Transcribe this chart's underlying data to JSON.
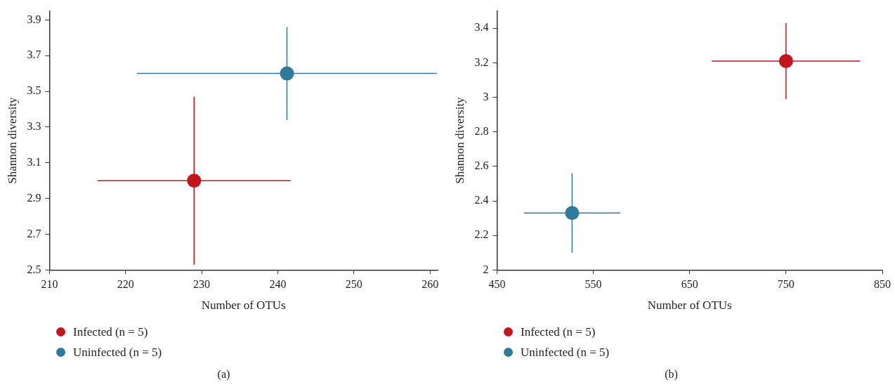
{
  "chart_data": [
    {
      "type": "scatter",
      "xlabel": "Number of OTUs",
      "ylabel": "Shannon diversity",
      "xlim": [
        210,
        261
      ],
      "xticks": [
        210,
        220,
        230,
        240,
        250,
        260
      ],
      "ylim": [
        2.5,
        3.95
      ],
      "yticks": [
        2.5,
        2.7,
        2.9,
        3.1,
        3.3,
        3.5,
        3.7,
        3.9
      ],
      "legend": "bottom left",
      "marker": "circle",
      "annotations": [
        "(a)"
      ],
      "series": [
        {
          "name": "Infected (n = 5)",
          "color": "#c3161c",
          "x": [
            229
          ],
          "values": [
            3.0
          ],
          "xerrors": [
            12.7
          ],
          "errors": [
            0.47
          ]
        },
        {
          "name": "Uninfected (n = 5)",
          "color": "#2e7a9a",
          "x": [
            241.2
          ],
          "values": [
            3.6
          ],
          "xerrors": [
            19.7
          ],
          "errors": [
            0.26
          ]
        }
      ]
    },
    {
      "type": "scatter",
      "xlabel": "Number of OTUs",
      "ylabel": "Shannon diversity",
      "xlim": [
        450,
        850
      ],
      "xticks": [
        450,
        550,
        650,
        750,
        850
      ],
      "ylim": [
        2,
        3.5
      ],
      "yticks": [
        2,
        2.2,
        2.4,
        2.6,
        2.8,
        {
          "value": 3,
          "label": "3"
        },
        3.2,
        3.4
      ],
      "legend": "bottom left",
      "marker": "circle",
      "annotations": [
        "(b)"
      ],
      "series": [
        {
          "name": "Infected (n = 5)",
          "color": "#c3161c",
          "x": [
            750
          ],
          "values": [
            3.21
          ],
          "xerrors": [
            77
          ],
          "errors": [
            0.22
          ]
        },
        {
          "name": "Uninfected (n = 5)",
          "color": "#2e7a9a",
          "x": [
            528
          ],
          "values": [
            2.33
          ],
          "xerrors": [
            50
          ],
          "errors": [
            0.23
          ]
        }
      ]
    }
  ]
}
